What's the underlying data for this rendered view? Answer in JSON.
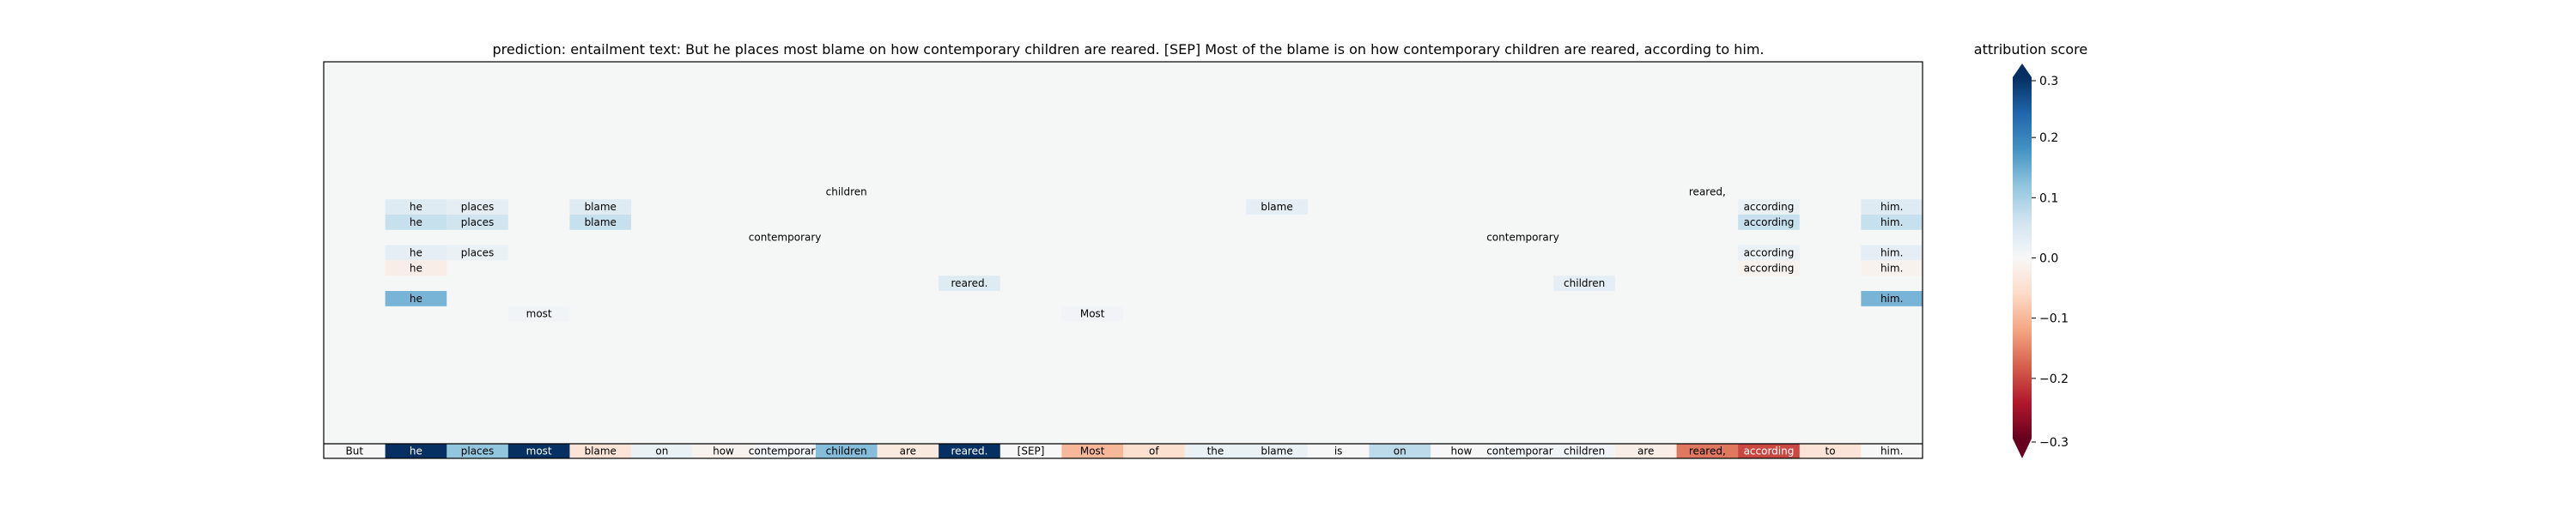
{
  "chart_data": {
    "type": "heatmap",
    "title": "prediction:  entailment     text:  But he places most blame on how contemporary children are reared. [SEP] Most of the blame is on how contemporary children are reared, according to him.",
    "tokens": [
      "But",
      "he",
      "places",
      "most",
      "blame",
      "on",
      "how",
      "contemporary",
      "children",
      "are",
      "reared.",
      "[SEP]",
      "Most",
      "of",
      "the",
      "blame",
      "is",
      "on",
      "how",
      "contemporary",
      "children",
      "are",
      "reared,",
      "according",
      "to",
      "him."
    ],
    "token_scores": [
      0.0,
      0.3,
      0.12,
      0.3,
      -0.04,
      0.02,
      -0.01,
      0.01,
      0.13,
      -0.03,
      0.3,
      0.0,
      -0.1,
      -0.05,
      0.02,
      0.02,
      0.0,
      0.08,
      0.0,
      0.01,
      0.01,
      -0.02,
      -0.16,
      -0.2,
      -0.04,
      0.0
    ],
    "attention_rows": 25,
    "cells": [
      {
        "row": 8,
        "col": 8,
        "v": 0.0
      },
      {
        "row": 9,
        "col": 1,
        "v": 0.04
      },
      {
        "row": 9,
        "col": 2,
        "v": 0.03
      },
      {
        "row": 9,
        "col": 4,
        "v": 0.04
      },
      {
        "row": 9,
        "col": 15,
        "v": 0.03
      },
      {
        "row": 9,
        "col": 23,
        "v": 0.02
      },
      {
        "row": 9,
        "col": 25,
        "v": 0.04
      },
      {
        "row": 10,
        "col": 1,
        "v": 0.07
      },
      {
        "row": 10,
        "col": 2,
        "v": 0.06
      },
      {
        "row": 10,
        "col": 4,
        "v": 0.07
      },
      {
        "row": 10,
        "col": 23,
        "v": 0.07
      },
      {
        "row": 10,
        "col": 25,
        "v": 0.07
      },
      {
        "row": 11,
        "col": 7,
        "v": 0.0
      },
      {
        "row": 11,
        "col": 19,
        "v": 0.0
      },
      {
        "row": 12,
        "col": 1,
        "v": 0.03
      },
      {
        "row": 12,
        "col": 2,
        "v": 0.02
      },
      {
        "row": 12,
        "col": 23,
        "v": 0.02
      },
      {
        "row": 12,
        "col": 25,
        "v": 0.03
      },
      {
        "row": 13,
        "col": 1,
        "v": -0.02
      },
      {
        "row": 13,
        "col": 23,
        "v": -0.01
      },
      {
        "row": 13,
        "col": 25,
        "v": -0.01
      },
      {
        "row": 14,
        "col": 10,
        "v": 0.04
      },
      {
        "row": 14,
        "col": 20,
        "v": 0.03
      },
      {
        "row": 15,
        "col": 1,
        "v": 0.14
      },
      {
        "row": 15,
        "col": 25,
        "v": 0.14
      },
      {
        "row": 16,
        "col": 3,
        "v": 0.01
      },
      {
        "row": 16,
        "col": 12,
        "v": 0.01
      },
      {
        "row": 8,
        "col": 22,
        "v": 0.0
      }
    ],
    "colorbar": {
      "label": "attribution score",
      "ticks": [
        "0.3",
        "0.2",
        "0.1",
        "0.0",
        "−0.1",
        "−0.2",
        "−0.3"
      ],
      "tick_values": [
        0.3,
        0.2,
        0.1,
        0.0,
        -0.1,
        -0.2,
        -0.3
      ],
      "range": [
        -0.3,
        0.3
      ],
      "colormap": "RdBu"
    },
    "background_color": "#f5f6f6",
    "grid": false
  }
}
